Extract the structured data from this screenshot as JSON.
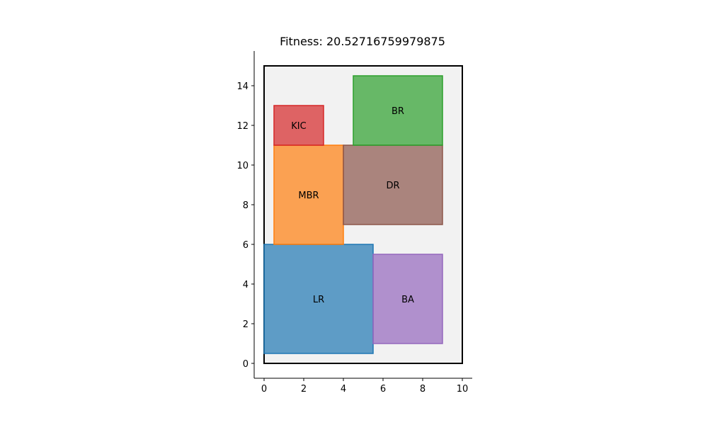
{
  "chart_data": {
    "type": "floorplan",
    "title": "Fitness: 20.52716759979875",
    "xlim": [
      -0.5,
      10.5
    ],
    "ylim": [
      -0.75,
      15.75
    ],
    "xticks": [
      0,
      2,
      4,
      6,
      8,
      10
    ],
    "yticks": [
      0,
      2,
      4,
      6,
      8,
      10,
      12,
      14
    ],
    "grid": false,
    "boundary": {
      "x": 0,
      "y": 0,
      "width": 10,
      "height": 15,
      "fill": "#f2f2f2",
      "edge": "#000000"
    },
    "rooms": [
      {
        "name": "LR",
        "x": 0,
        "y": 0.5,
        "width": 5.5,
        "height": 5.5,
        "fill": "#1f77b4",
        "edge": "#1f77b4"
      },
      {
        "name": "BA",
        "x": 5.5,
        "y": 1,
        "width": 3.5,
        "height": 4.5,
        "fill": "#9467bd",
        "edge": "#9467bd"
      },
      {
        "name": "MBR",
        "x": 0.5,
        "y": 6,
        "width": 3.5,
        "height": 5,
        "fill": "#ff7f0e",
        "edge": "#ff7f0e"
      },
      {
        "name": "DR",
        "x": 4,
        "y": 7,
        "width": 5,
        "height": 4,
        "fill": "#8c564b",
        "edge": "#8c564b"
      },
      {
        "name": "KIC",
        "x": 0.5,
        "y": 11,
        "width": 2.5,
        "height": 2,
        "fill": "#d62728",
        "edge": "#d62728"
      },
      {
        "name": "BR",
        "x": 4.5,
        "y": 11,
        "width": 4.5,
        "height": 3.5,
        "fill": "#2ca02c",
        "edge": "#2ca02c"
      }
    ]
  }
}
